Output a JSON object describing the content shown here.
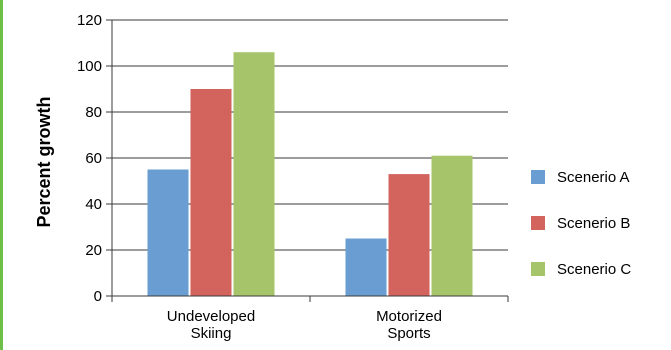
{
  "chart_data": {
    "type": "bar",
    "title": "",
    "xlabel": "",
    "ylabel": "Percent growth",
    "ylim": [
      0,
      120
    ],
    "yticks": [
      0,
      20,
      40,
      60,
      80,
      100,
      120
    ],
    "grid": true,
    "legend_position": "right",
    "categories": [
      [
        "Undeveloped",
        "Skiing"
      ],
      [
        "Motorized",
        "Sports"
      ]
    ],
    "series": [
      {
        "name": "Scenerio A",
        "color": "#6a9ed2",
        "values": [
          55,
          25
        ]
      },
      {
        "name": "Scenerio B",
        "color": "#d2635d",
        "values": [
          90,
          53
        ]
      },
      {
        "name": "Scenerio C",
        "color": "#a6c56a",
        "values": [
          106,
          61
        ]
      }
    ]
  }
}
